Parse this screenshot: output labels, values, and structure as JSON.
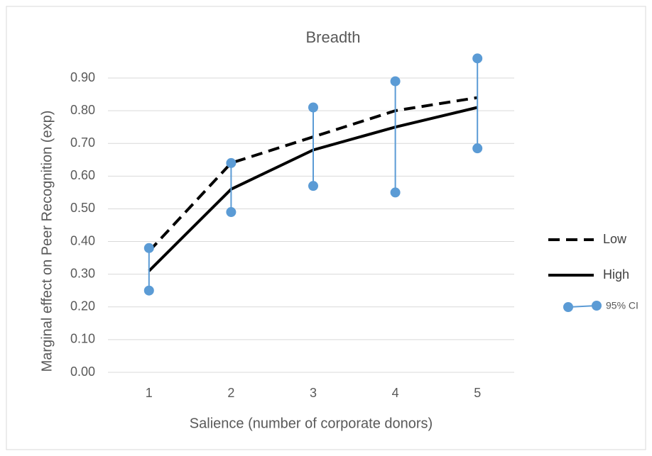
{
  "chart_data": {
    "type": "line",
    "title": "Breadth",
    "x_label": "Salience (number of corporate donors)",
    "y_label": "Marginal effect on Peer Recognition (exp)",
    "categories": [
      "1",
      "2",
      "3",
      "4",
      "5"
    ],
    "series": [
      {
        "name": "Low",
        "color": "#000000",
        "dash": true,
        "values": [
          0.37,
          0.64,
          0.72,
          0.8,
          0.84
        ]
      },
      {
        "name": "High",
        "color": "#000000",
        "dash": false,
        "values": [
          0.31,
          0.56,
          0.68,
          0.75,
          0.81
        ]
      }
    ],
    "ci": {
      "name": "95% CI",
      "color": "#5b9bd5",
      "lower": [
        0.25,
        0.49,
        0.57,
        0.55,
        0.685
      ],
      "upper": [
        0.38,
        0.64,
        0.81,
        0.89,
        0.96
      ]
    },
    "ylim": [
      0,
      0.9
    ],
    "yticks": [
      {
        "value": 0,
        "label": "0.00"
      },
      {
        "value": 0.1,
        "label": "0.10"
      },
      {
        "value": 0.2,
        "label": "0.20"
      },
      {
        "value": 0.3,
        "label": "0.30"
      },
      {
        "value": 0.4,
        "label": "0.40"
      },
      {
        "value": 0.5,
        "label": "0.50"
      },
      {
        "value": 0.6,
        "label": "0.60"
      },
      {
        "value": 0.7,
        "label": "0.70"
      },
      {
        "value": 0.8,
        "label": "0.80"
      },
      {
        "value": 0.9,
        "label": "0.90"
      }
    ],
    "grid": true,
    "legend": "right"
  }
}
